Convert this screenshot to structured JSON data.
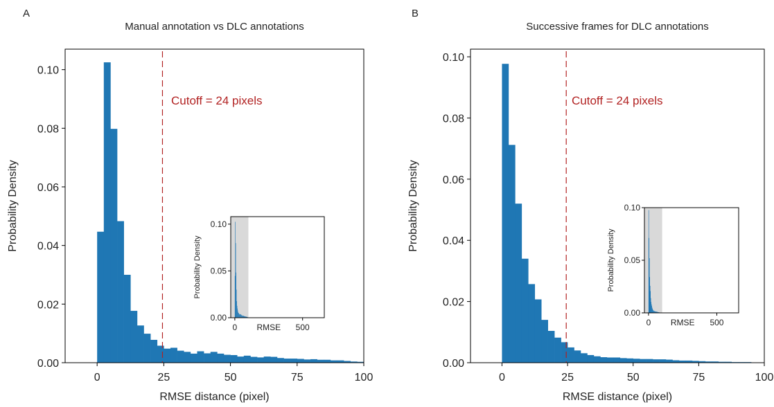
{
  "colors": {
    "bar": "#1f77b4",
    "cutoff": "#b22222",
    "inset_shade": "#d9d9d9",
    "axis": "#000000"
  },
  "chart_data": [
    {
      "panel_label": "A",
      "type": "bar",
      "title": "Manual annotation vs DLC annotations",
      "xlabel": "RMSE distance (pixel)",
      "ylabel": "Probability Density",
      "xlim": [
        -12,
        100
      ],
      "ylim": [
        0,
        0.107
      ],
      "xticks": [
        0,
        25,
        50,
        75,
        100
      ],
      "yticks": [
        0.0,
        0.02,
        0.04,
        0.06,
        0.08,
        0.1
      ],
      "ytick_labels": [
        "0.00",
        "0.02",
        "0.04",
        "0.06",
        "0.08",
        "0.10"
      ],
      "bin_width": 2.5,
      "bin_start": 0,
      "values": [
        0.0447,
        0.1025,
        0.0798,
        0.0483,
        0.03,
        0.0177,
        0.0127,
        0.0099,
        0.0078,
        0.0058,
        0.0048,
        0.0051,
        0.0041,
        0.0037,
        0.0031,
        0.0039,
        0.0032,
        0.0037,
        0.0031,
        0.0027,
        0.0026,
        0.0021,
        0.0024,
        0.002,
        0.0018,
        0.0021,
        0.002,
        0.0016,
        0.0014,
        0.0014,
        0.0013,
        0.0011,
        0.0012,
        0.001,
        0.001,
        0.0008,
        0.0008,
        0.0006,
        0.0004,
        0.0003
      ],
      "cutoff": 24.5,
      "annotation": "Cutoff = 24 pixels",
      "inset": {
        "xlabel": "RMSE",
        "ylabel": "Probability Density",
        "xlim": [
          -30,
          660
        ],
        "ylim": [
          0,
          0.108
        ],
        "xticks": [
          0,
          500
        ],
        "yticks": [
          0.0,
          0.05,
          0.1
        ],
        "ytick_labels": [
          "0.00",
          "0.05",
          "0.10"
        ],
        "shade_range": [
          -30,
          100
        ],
        "bin_width": 2.5,
        "values": [
          0.0447,
          0.1025,
          0.0798,
          0.0483,
          0.03,
          0.0177,
          0.0127,
          0.0099,
          0.0078,
          0.0058,
          0.0048,
          0.0051,
          0.0041,
          0.0037,
          0.0031,
          0.0039,
          0.0032,
          0.0037,
          0.0031,
          0.0027,
          0.0026,
          0.0021,
          0.0024,
          0.002,
          0.0018,
          0.0021,
          0.002,
          0.0016,
          0.0014,
          0.0014,
          0.0013,
          0.0011,
          0.0012,
          0.001,
          0.001,
          0.0008,
          0.0008,
          0.0006,
          0.0004,
          0.0003
        ]
      }
    },
    {
      "panel_label": "B",
      "type": "bar",
      "title": "Successive frames for DLC annotations",
      "xlabel": "RMSE distance (pixel)",
      "ylabel": "Probability Density",
      "xlim": [
        -12,
        100
      ],
      "ylim": [
        0,
        0.1025
      ],
      "xticks": [
        0,
        25,
        50,
        75,
        100
      ],
      "yticks": [
        0.0,
        0.02,
        0.04,
        0.06,
        0.08,
        0.1
      ],
      "ytick_labels": [
        "0.00",
        "0.02",
        "0.04",
        "0.06",
        "0.08",
        "0.10"
      ],
      "bin_width": 2.5,
      "bin_start": 0,
      "values": [
        0.0977,
        0.0712,
        0.052,
        0.034,
        0.0257,
        0.0207,
        0.014,
        0.0104,
        0.0082,
        0.0067,
        0.005,
        0.004,
        0.0031,
        0.0025,
        0.0021,
        0.0018,
        0.0017,
        0.0017,
        0.0015,
        0.0014,
        0.0013,
        0.0012,
        0.0012,
        0.0011,
        0.0011,
        0.001,
        0.0008,
        0.0007,
        0.0007,
        0.0006,
        0.0005,
        0.0004,
        0.0004,
        0.0003,
        0.0003,
        0.0002,
        0.0002,
        0.0002,
        0.0001,
        0.0001
      ],
      "cutoff": 24.5,
      "annotation": "Cutoff = 24 pixels",
      "inset": {
        "xlabel": "RMSE",
        "ylabel": "Probability Density",
        "xlim": [
          -30,
          660
        ],
        "ylim": [
          0,
          0.1
        ],
        "xticks": [
          0,
          500
        ],
        "yticks": [
          0.0,
          0.05,
          0.1
        ],
        "ytick_labels": [
          "0.00",
          "0.05",
          "0.10"
        ],
        "shade_range": [
          -30,
          100
        ],
        "bin_width": 2.5,
        "values": [
          0.0977,
          0.0712,
          0.052,
          0.034,
          0.0257,
          0.0207,
          0.014,
          0.0104,
          0.0082,
          0.0067,
          0.005,
          0.004,
          0.0031,
          0.0025,
          0.0021,
          0.0018,
          0.0017,
          0.0017,
          0.0015,
          0.0014,
          0.0013,
          0.0012,
          0.0012,
          0.0011,
          0.0011,
          0.001,
          0.0008,
          0.0007,
          0.0007,
          0.0006,
          0.0005,
          0.0004,
          0.0004,
          0.0003,
          0.0003,
          0.0002,
          0.0002,
          0.0002,
          0.0001,
          0.0001
        ]
      }
    }
  ]
}
